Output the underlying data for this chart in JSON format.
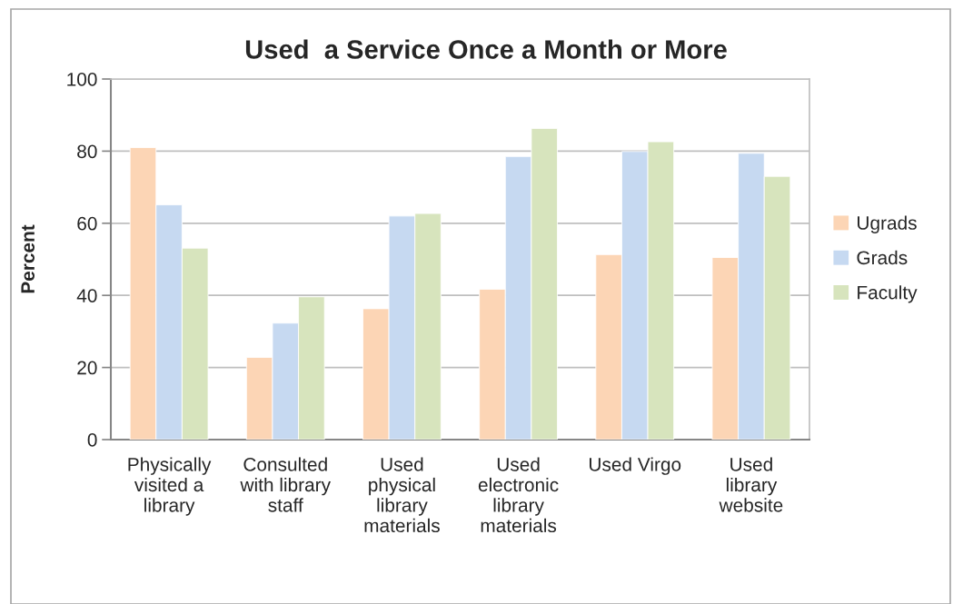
{
  "chart_data": {
    "type": "bar",
    "title": "Used  a Service Once a Month or More",
    "ylabel": "Percent",
    "categories": [
      "Physically\nvisited a\nlibrary",
      "Consulted\nwith library\nstaff",
      "Used\nphysical\nlibrary\nmaterials",
      "Used\nelectronic\nlibrary\nmaterials",
      "Used Virgo",
      "Used\nlibrary\nwebsite"
    ],
    "series": [
      {
        "name": "Ugrads",
        "color": "#fcd5b5",
        "values": [
          81.0,
          22.8,
          36.3,
          41.7,
          51.3,
          50.5
        ]
      },
      {
        "name": "Grads",
        "color": "#c6d9f1",
        "values": [
          65.1,
          32.3,
          62.0,
          78.5,
          79.9,
          79.4
        ]
      },
      {
        "name": "Faculty",
        "color": "#d7e4bd",
        "values": [
          53.1,
          39.6,
          62.7,
          86.3,
          82.6,
          73.0
        ]
      }
    ],
    "ylim": [
      0,
      100
    ],
    "yticks": [
      0,
      20,
      40,
      60,
      80,
      100
    ],
    "grid": "y",
    "legend": "right"
  }
}
